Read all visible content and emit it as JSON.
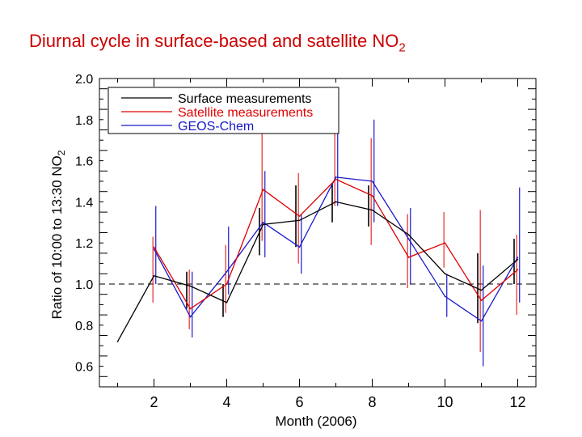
{
  "title": "Diurnal cycle in surface-based and satellite NO",
  "title_subscript": "2",
  "chart_data": {
    "type": "line",
    "xlabel": "Month (2006)",
    "ylabel": "Ratio of 10:00 to 13:30 NO",
    "ylabel_subscript": "2",
    "xlim": [
      0.5,
      12.5
    ],
    "ylim": [
      0.5,
      2.0
    ],
    "xticks": [
      2,
      4,
      6,
      8,
      10,
      12
    ],
    "yticks": [
      0.6,
      0.8,
      1.0,
      1.2,
      1.4,
      1.6,
      1.8,
      2.0
    ],
    "ytick_labels": [
      "0.6",
      "0.8",
      "1.0",
      "1.2",
      "1.4",
      "1.6",
      "1.8",
      "2.0"
    ],
    "reference_line": 1.0,
    "legend_position": "top-left",
    "series": [
      {
        "name": "Surface measurements",
        "color": "#000000",
        "x": [
          1,
          2,
          3,
          4,
          5,
          6,
          7,
          8,
          9,
          10,
          11,
          12
        ],
        "values": [
          0.72,
          1.04,
          0.99,
          0.91,
          1.29,
          1.31,
          1.4,
          1.36,
          1.24,
          1.05,
          0.97,
          1.12
        ],
        "error_low": [
          null,
          null,
          0.88,
          0.84,
          1.14,
          1.18,
          1.3,
          1.28,
          null,
          null,
          0.81,
          1.0
        ],
        "error_high": [
          null,
          null,
          1.06,
          1.0,
          1.37,
          1.48,
          1.49,
          1.48,
          null,
          null,
          1.15,
          1.22
        ]
      },
      {
        "name": "Satellite measurements",
        "color": "#e00000",
        "x": [
          2,
          3,
          4,
          5,
          6,
          7,
          8,
          9,
          10,
          11,
          12
        ],
        "values": [
          1.18,
          0.88,
          1.0,
          1.46,
          1.33,
          1.51,
          1.43,
          1.13,
          1.2,
          0.92,
          1.07
        ],
        "error_low": [
          0.91,
          0.78,
          0.86,
          1.21,
          1.1,
          1.38,
          1.19,
          0.98,
          1.08,
          0.67,
          0.85
        ],
        "error_high": [
          1.23,
          1.07,
          1.19,
          1.74,
          1.54,
          1.74,
          1.71,
          1.34,
          1.35,
          1.36,
          1.24
        ]
      },
      {
        "name": "GEOS-Chem",
        "color": "#1a1acc",
        "x": [
          2,
          3,
          4,
          5,
          6,
          7,
          8,
          9,
          10,
          11,
          12
        ],
        "values": [
          1.17,
          0.84,
          1.06,
          1.3,
          1.18,
          1.52,
          1.5,
          1.22,
          0.94,
          0.82,
          1.13
        ],
        "error_low": [
          1.0,
          0.74,
          0.95,
          1.13,
          1.05,
          1.38,
          1.3,
          1.0,
          0.84,
          0.6,
          0.91
        ],
        "error_high": [
          1.38,
          1.06,
          1.28,
          1.55,
          1.34,
          1.75,
          1.8,
          1.37,
          1.05,
          1.09,
          1.47
        ]
      }
    ]
  }
}
